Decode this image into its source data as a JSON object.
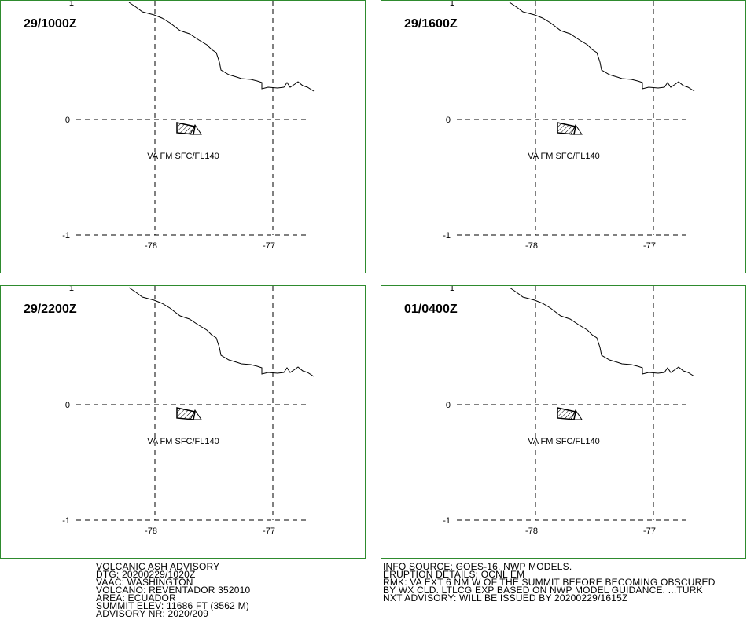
{
  "panels": [
    {
      "time": "29/1000Z",
      "lat_labels": [
        "1",
        "0",
        "-1"
      ],
      "lon_labels": [
        "-78",
        "-77"
      ],
      "area_label": "VA FM SFC/FL140"
    },
    {
      "time": "29/1600Z",
      "lat_labels": [
        "1",
        "0",
        "-1"
      ],
      "lon_labels": [
        "-78",
        "-77"
      ],
      "area_label": "VA FM SFC/FL140"
    },
    {
      "time": "29/2200Z",
      "lat_labels": [
        "1",
        "0",
        "-1"
      ],
      "lon_labels": [
        "-78",
        "-77"
      ],
      "area_label": "VA FM SFC/FL140"
    },
    {
      "time": "01/0400Z",
      "lat_labels": [
        "1",
        "0",
        "-1"
      ],
      "lon_labels": [
        "-78",
        "-77"
      ],
      "area_label": "VA FM SFC/FL140"
    }
  ],
  "advisory": {
    "left": [
      "VOLCANIC ASH ADVISORY",
      "DTG: 20200229/1020Z",
      "VAAC: WASHINGTON",
      "VOLCANO: REVENTADOR 352010",
      "AREA: ECUADOR",
      "SUMMIT ELEV: 11686 FT (3562 M)",
      "ADVISORY NR: 2020/209"
    ],
    "right": [
      "INFO SOURCE: GOES-16. NWP MODELS.",
      "ERUPTION DETAILS: OCNL EM",
      "RMK: VA EXT 6 NM W OF THE SUMMIT BEFORE BECOMING OBSCURED",
      "BY WX CLD. LTLCG EXP BASED ON NWP MODEL GUIDANCE. ...TURK",
      "NXT ADVISORY: WILL BE ISSUED BY 20200229/1615Z"
    ]
  }
}
